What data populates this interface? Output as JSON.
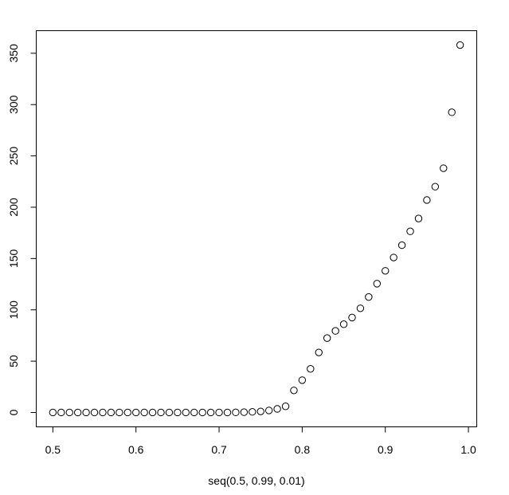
{
  "chart_data": {
    "type": "scatter",
    "xlabel": "seq(0.5, 0.99, 0.01)",
    "ylabel": "",
    "title": "",
    "xlim": [
      0.48,
      1.01
    ],
    "ylim": [
      -14,
      372
    ],
    "x_ticks": [
      0.5,
      0.6,
      0.7,
      0.8,
      0.9,
      1.0
    ],
    "x_tick_labels": [
      "0.5",
      "0.6",
      "0.7",
      "0.8",
      "0.9",
      "1.0"
    ],
    "y_ticks": [
      0,
      50,
      100,
      150,
      200,
      250,
      300,
      350
    ],
    "y_tick_labels": [
      "0",
      "50",
      "100",
      "150",
      "200",
      "250",
      "300",
      "350"
    ],
    "marker": "open-circle",
    "grid": false,
    "x": [
      0.5,
      0.51,
      0.52,
      0.53,
      0.54,
      0.55,
      0.56,
      0.57,
      0.58,
      0.59,
      0.6,
      0.61,
      0.62,
      0.63,
      0.64,
      0.65,
      0.66,
      0.67,
      0.68,
      0.69,
      0.7,
      0.71,
      0.72,
      0.73,
      0.74,
      0.75,
      0.76,
      0.77,
      0.78,
      0.79,
      0.8,
      0.81,
      0.82,
      0.83,
      0.84,
      0.85,
      0.86,
      0.87,
      0.88,
      0.89,
      0.9,
      0.91,
      0.92,
      0.93,
      0.94,
      0.95,
      0.96,
      0.97,
      0.98,
      0.99
    ],
    "y": [
      0,
      0,
      0,
      0,
      0,
      0,
      0,
      0,
      0,
      0,
      0,
      0,
      0,
      0,
      0,
      0,
      0,
      0,
      0,
      0,
      0,
      0,
      0.1,
      0.3,
      0.6,
      1,
      2,
      3.5,
      6,
      21.5,
      31.5,
      42.5,
      58.5,
      72.5,
      79.5,
      86,
      92.5,
      101.5,
      112.5,
      125.5,
      138,
      151,
      163,
      176.5,
      189,
      207,
      220,
      238,
      292.5,
      358
    ]
  }
}
